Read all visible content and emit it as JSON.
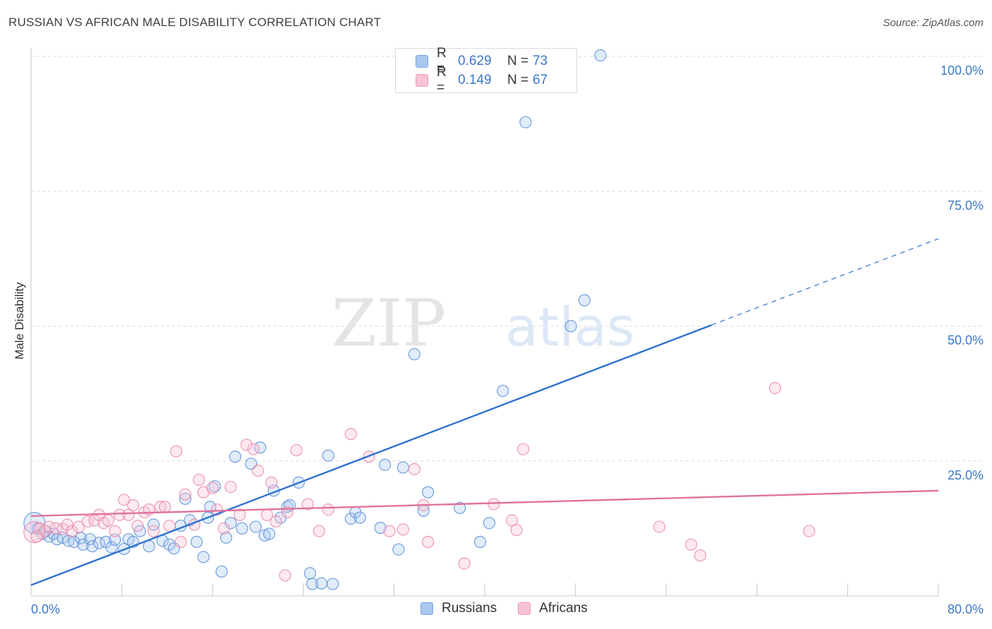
{
  "title": "RUSSIAN VS AFRICAN MALE DISABILITY CORRELATION CHART",
  "source": "Source: ZipAtlas.com",
  "watermark": {
    "part1": "ZIP",
    "part2": "atlas"
  },
  "legend_stats": [
    {
      "r_label": "R =",
      "r_value": "0.629",
      "n_label": "N =",
      "n_value": "73",
      "color": "#a9c8f0",
      "border": "#7aa6de"
    },
    {
      "r_label": "R =",
      "r_value": "0.149",
      "n_label": "N =",
      "n_value": "67",
      "color": "#f7c3d3",
      "border": "#ec9ab4"
    }
  ],
  "legend_bottom": [
    {
      "label": "Russians",
      "color": "#a9c8f0",
      "border": "#7aa6de"
    },
    {
      "label": "Africans",
      "color": "#f7c3d3",
      "border": "#ec9ab4"
    }
  ],
  "colors": {
    "russians_line": "#2f72d0",
    "africans_line": "#e0739b",
    "russians_point": "#5a8fd8",
    "africans_point": "#e98aa9",
    "axis_text": "#3a78c8",
    "grid": "#dcdcdc"
  },
  "chart_data": {
    "type": "scatter",
    "title": "RUSSIAN VS AFRICAN MALE DISABILITY CORRELATION CHART",
    "xlabel": "",
    "ylabel": "Male Disability",
    "xlim": [
      0,
      80
    ],
    "ylim": [
      0,
      100
    ],
    "x_tick_labels": [
      {
        "value": 0,
        "label": "0.0%"
      },
      {
        "value": 80,
        "label": "80.0%"
      }
    ],
    "y_tick_labels": [
      {
        "value": 25,
        "label": "25.0%"
      },
      {
        "value": 50,
        "label": "50.0%"
      },
      {
        "value": 75,
        "label": "75.0%"
      },
      {
        "value": 100,
        "label": "100.0%"
      }
    ],
    "grid": true,
    "legend": "top-center",
    "series": [
      {
        "name": "Russians",
        "points": [
          [
            0.3,
            13.5
          ],
          [
            0.6,
            12.5
          ],
          [
            1.0,
            11.5
          ],
          [
            1.3,
            12.0
          ],
          [
            1.6,
            11.0
          ],
          [
            2.0,
            11.5
          ],
          [
            2.3,
            10.5
          ],
          [
            2.8,
            10.8
          ],
          [
            3.3,
            10.2
          ],
          [
            3.8,
            10.0
          ],
          [
            4.4,
            10.7
          ],
          [
            4.6,
            9.5
          ],
          [
            5.2,
            10.5
          ],
          [
            5.4,
            9.2
          ],
          [
            6.0,
            9.8
          ],
          [
            6.6,
            10.0
          ],
          [
            7.1,
            9.0
          ],
          [
            7.4,
            10.4
          ],
          [
            8.2,
            8.7
          ],
          [
            8.6,
            10.5
          ],
          [
            9.0,
            10.0
          ],
          [
            9.6,
            12.0
          ],
          [
            10.4,
            9.2
          ],
          [
            10.8,
            13.2
          ],
          [
            11.6,
            10.2
          ],
          [
            12.2,
            9.5
          ],
          [
            12.6,
            8.8
          ],
          [
            13.2,
            13.0
          ],
          [
            13.6,
            18.0
          ],
          [
            14.0,
            14.0
          ],
          [
            14.6,
            10.0
          ],
          [
            15.2,
            7.2
          ],
          [
            15.6,
            14.5
          ],
          [
            15.8,
            16.5
          ],
          [
            16.2,
            20.3
          ],
          [
            16.8,
            4.5
          ],
          [
            17.2,
            10.8
          ],
          [
            17.6,
            13.5
          ],
          [
            18.0,
            25.8
          ],
          [
            18.6,
            12.5
          ],
          [
            19.4,
            24.5
          ],
          [
            19.8,
            12.8
          ],
          [
            20.2,
            27.5
          ],
          [
            20.6,
            11.2
          ],
          [
            21.0,
            11.5
          ],
          [
            21.4,
            19.5
          ],
          [
            22.0,
            14.5
          ],
          [
            22.6,
            16.5
          ],
          [
            22.8,
            16.8
          ],
          [
            23.6,
            21.0
          ],
          [
            24.6,
            4.2
          ],
          [
            24.8,
            2.2
          ],
          [
            25.6,
            2.3
          ],
          [
            26.2,
            26.0
          ],
          [
            26.6,
            2.2
          ],
          [
            28.2,
            14.3
          ],
          [
            28.6,
            15.5
          ],
          [
            29.0,
            14.5
          ],
          [
            30.8,
            12.6
          ],
          [
            31.2,
            24.3
          ],
          [
            32.4,
            8.6
          ],
          [
            32.8,
            23.8
          ],
          [
            33.8,
            44.8
          ],
          [
            34.6,
            15.8
          ],
          [
            35.0,
            19.2
          ],
          [
            37.8,
            16.3
          ],
          [
            39.6,
            10.0
          ],
          [
            41.6,
            38.0
          ],
          [
            43.6,
            87.8
          ],
          [
            47.6,
            50.0
          ],
          [
            48.8,
            54.8
          ],
          [
            50.2,
            100.2
          ],
          [
            40.4,
            13.5
          ]
        ],
        "trendline": {
          "x": [
            0,
            60
          ],
          "y": [
            2.0,
            50.2
          ],
          "dashed_extension": {
            "x": [
              60,
              80
            ],
            "y": [
              50.2,
              66.2
            ]
          }
        }
      },
      {
        "name": "Africans",
        "points": [
          [
            0.3,
            11.8
          ],
          [
            0.8,
            12.5
          ],
          [
            1.2,
            12.0
          ],
          [
            1.6,
            12.8
          ],
          [
            2.2,
            12.5
          ],
          [
            2.8,
            12.4
          ],
          [
            3.2,
            13.2
          ],
          [
            3.6,
            12.0
          ],
          [
            4.2,
            12.8
          ],
          [
            5.0,
            13.8
          ],
          [
            5.6,
            14.0
          ],
          [
            6.0,
            15.0
          ],
          [
            6.4,
            13.5
          ],
          [
            6.8,
            14.0
          ],
          [
            7.4,
            12.0
          ],
          [
            7.8,
            15.0
          ],
          [
            8.2,
            17.8
          ],
          [
            8.6,
            15.0
          ],
          [
            9.0,
            16.8
          ],
          [
            9.4,
            13.0
          ],
          [
            10.0,
            15.5
          ],
          [
            10.4,
            16.0
          ],
          [
            10.8,
            12.0
          ],
          [
            11.4,
            16.5
          ],
          [
            11.8,
            16.5
          ],
          [
            12.2,
            13.0
          ],
          [
            12.8,
            26.8
          ],
          [
            13.2,
            10.0
          ],
          [
            13.6,
            18.8
          ],
          [
            14.4,
            13.2
          ],
          [
            14.8,
            21.5
          ],
          [
            15.2,
            19.2
          ],
          [
            16.0,
            20.0
          ],
          [
            16.4,
            16.0
          ],
          [
            17.0,
            12.5
          ],
          [
            17.6,
            20.2
          ],
          [
            18.4,
            15.0
          ],
          [
            19.0,
            28.0
          ],
          [
            19.6,
            27.2
          ],
          [
            20.0,
            23.2
          ],
          [
            20.8,
            15.0
          ],
          [
            21.2,
            21.0
          ],
          [
            21.6,
            13.8
          ],
          [
            22.4,
            3.8
          ],
          [
            22.6,
            15.5
          ],
          [
            23.4,
            27.0
          ],
          [
            24.4,
            17.0
          ],
          [
            25.4,
            12.0
          ],
          [
            26.2,
            16.0
          ],
          [
            28.2,
            30.0
          ],
          [
            29.8,
            25.8
          ],
          [
            31.6,
            12.0
          ],
          [
            32.8,
            12.3
          ],
          [
            33.8,
            23.5
          ],
          [
            34.6,
            16.8
          ],
          [
            35.0,
            10.0
          ],
          [
            38.2,
            6.0
          ],
          [
            40.8,
            17.0
          ],
          [
            42.4,
            14.0
          ],
          [
            42.8,
            12.2
          ],
          [
            43.4,
            27.2
          ],
          [
            55.4,
            12.8
          ],
          [
            58.2,
            9.5
          ],
          [
            59.0,
            7.5
          ],
          [
            65.6,
            38.5
          ],
          [
            68.6,
            12.0
          ],
          [
            0.5,
            11.0
          ]
        ],
        "trendline": {
          "x": [
            0,
            80
          ],
          "y": [
            14.8,
            19.5
          ]
        }
      }
    ]
  }
}
